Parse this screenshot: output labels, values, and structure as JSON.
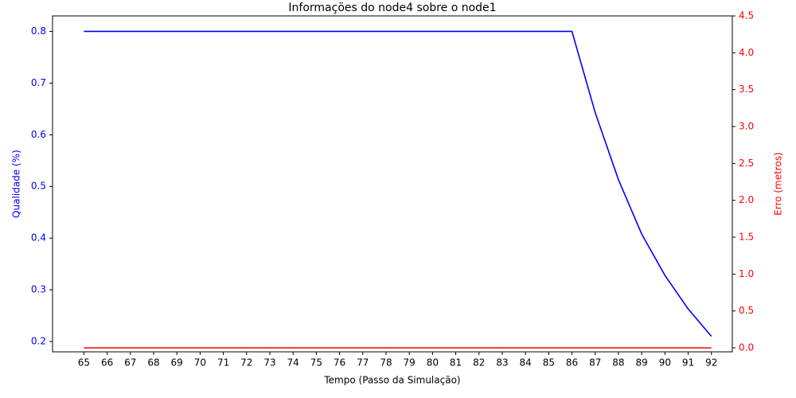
{
  "chart_data": {
    "type": "line",
    "title": "Informações do node4 sobre o node1",
    "xlabel": "Tempo (Passo da Simulação)",
    "ylabel": "Qualidade (%)",
    "y2label": "Erro (metros)",
    "ylabel_color": "#0000ff",
    "y2label_color": "#ff0000",
    "x": [
      65,
      66,
      67,
      68,
      69,
      70,
      71,
      72,
      73,
      74,
      75,
      76,
      77,
      78,
      79,
      80,
      81,
      82,
      83,
      84,
      85,
      86,
      87,
      88,
      89,
      90,
      91,
      92
    ],
    "series": [
      {
        "color": "#0000ff",
        "axis": "y",
        "values": [
          0.8,
          0.8,
          0.8,
          0.8,
          0.8,
          0.8,
          0.8,
          0.8,
          0.8,
          0.8,
          0.8,
          0.8,
          0.8,
          0.8,
          0.8,
          0.8,
          0.8,
          0.8,
          0.8,
          0.8,
          0.8,
          0.8,
          0.643,
          0.513,
          0.408,
          0.328,
          0.263,
          0.21
        ]
      },
      {
        "color": "#ff0000",
        "axis": "y2",
        "values": [
          0,
          0,
          0,
          0,
          0,
          0,
          0,
          0,
          0,
          0,
          0,
          0,
          0,
          0,
          0,
          0,
          0,
          0,
          0,
          0,
          0,
          0,
          0,
          0,
          0,
          0,
          0,
          0
        ]
      }
    ],
    "xlim": [
      63.65,
      92.9
    ],
    "xticks": [
      65,
      66,
      67,
      68,
      69,
      70,
      71,
      72,
      73,
      74,
      75,
      76,
      77,
      78,
      79,
      80,
      81,
      82,
      83,
      84,
      85,
      86,
      87,
      88,
      89,
      90,
      91,
      92
    ],
    "ylim": [
      0.18,
      0.83
    ],
    "yticks": [
      0.2,
      0.3,
      0.4,
      0.5,
      0.6,
      0.7,
      0.8
    ],
    "y2lim": [
      -0.054,
      4.5
    ],
    "y2ticks": [
      {
        "value": 0,
        "label": "0.0"
      },
      0.5,
      {
        "value": 1,
        "label": "1.0"
      },
      1.5,
      {
        "value": 2,
        "label": "2.0"
      },
      2.5,
      {
        "value": 3,
        "label": "3.0"
      },
      3.5,
      {
        "value": 4,
        "label": "4.0"
      },
      4.5
    ],
    "grid": false
  }
}
